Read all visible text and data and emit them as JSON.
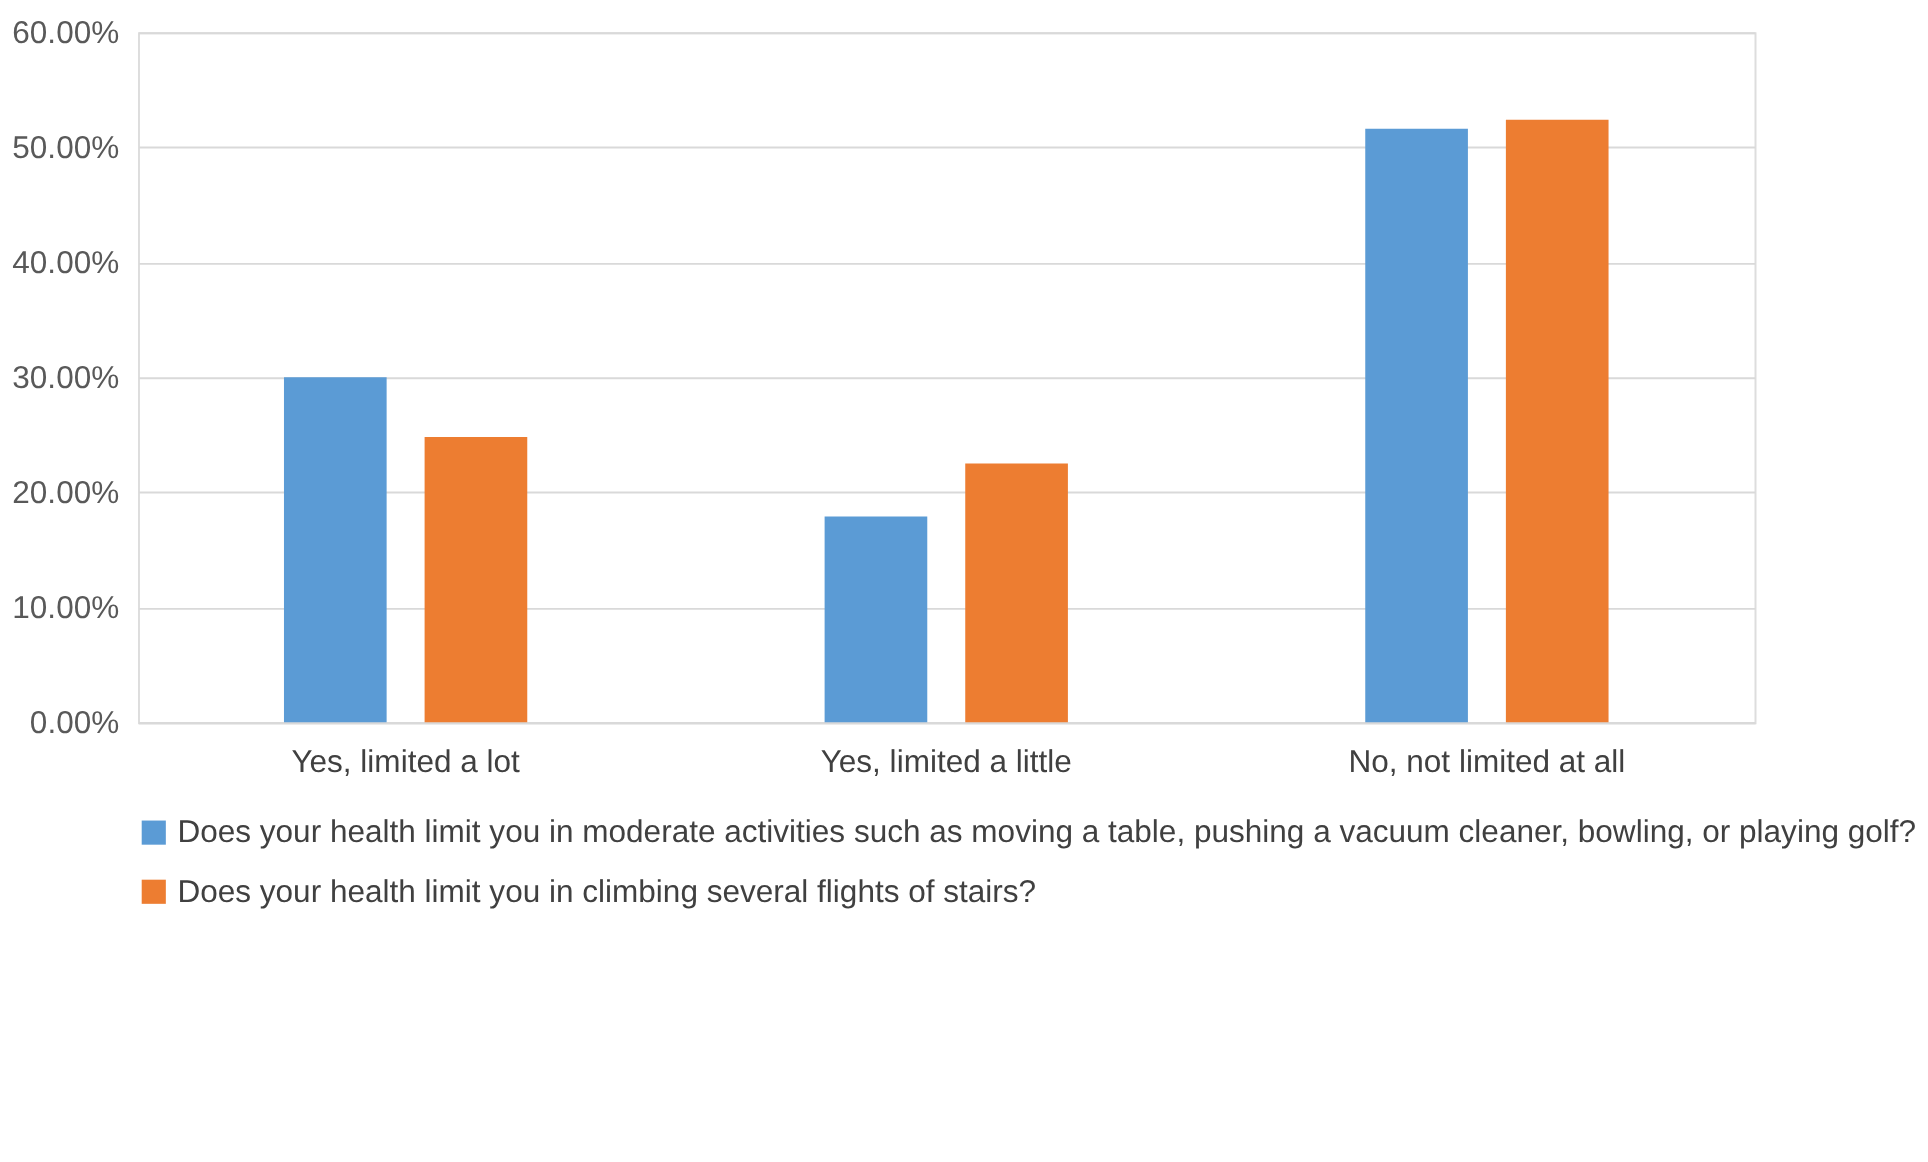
{
  "chart_data": {
    "type": "bar",
    "categories": [
      "Yes, limited a lot",
      "Yes, limited a little",
      "No, not limited at all"
    ],
    "series": [
      {
        "name": "Does your health limit you in moderate activities such as moving a table, pushing a vacuum cleaner, bowling, or playing golf?",
        "color": "#5b9bd5",
        "values": [
          30.0,
          17.9,
          51.6
        ]
      },
      {
        "name": "Does your health limit you in climbing several flights of stairs?",
        "color": "#ed7d31",
        "values": [
          24.8,
          22.5,
          52.4
        ]
      }
    ],
    "ylim": [
      0,
      60
    ],
    "yticks": [
      {
        "value": 0,
        "label": "0.00%"
      },
      {
        "value": 10,
        "label": "10.00%"
      },
      {
        "value": 20,
        "label": "20.00%"
      },
      {
        "value": 30,
        "label": "30.00%"
      },
      {
        "value": 40,
        "label": "40.00%"
      },
      {
        "value": 50,
        "label": "50.00%"
      },
      {
        "value": 60,
        "label": "60.00%"
      }
    ],
    "grid": "y",
    "legend": "bottom"
  }
}
